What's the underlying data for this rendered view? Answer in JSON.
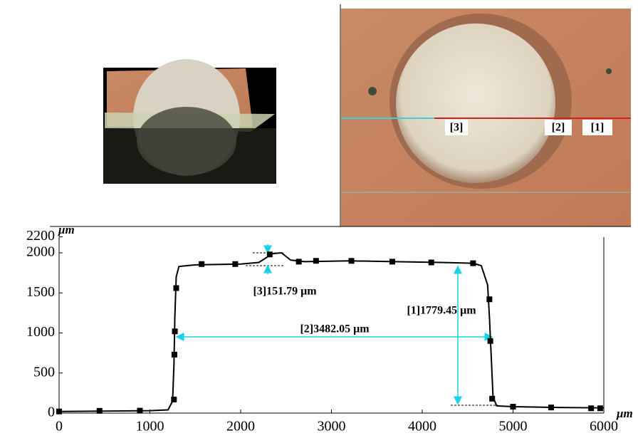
{
  "photos": {
    "labels": [
      "[3]",
      "[2]",
      "[1]"
    ]
  },
  "chart_data": {
    "type": "line",
    "x_unit": "μm",
    "y_unit": "μm",
    "xlim": [
      0,
      6000
    ],
    "xticks": [
      0,
      1000,
      2000,
      3000,
      4000,
      5000,
      6000
    ],
    "ylim": [
      0,
      2200
    ],
    "yticks": [
      0,
      500,
      1000,
      1500,
      2000,
      2200
    ],
    "annotations": [
      "[3]151.79 μm",
      "[2]3482.05 μm",
      "[1]1779.45 μm"
    ],
    "series": [
      {
        "color": "#000000",
        "marker": false,
        "x": [
          0,
          500,
          1000,
          1200,
          1250,
          1265,
          1275,
          1290,
          1320,
          1500,
          2000,
          2200,
          2350,
          2450,
          2550,
          2700,
          3200,
          3700,
          4200,
          4560,
          4650,
          4720,
          4740,
          4760,
          4780,
          4820,
          5000,
          5500,
          6000
        ],
        "values": [
          20,
          25,
          30,
          40,
          150,
          600,
          1200,
          1700,
          1830,
          1850,
          1860,
          1880,
          1990,
          2000,
          1910,
          1890,
          1900,
          1890,
          1880,
          1870,
          1840,
          1600,
          1200,
          700,
          200,
          90,
          80,
          70,
          65
        ]
      },
      {
        "color": "#000000",
        "marker": true,
        "x": [
          0,
          445,
          890,
          1265,
          1270,
          1275,
          1290,
          1570,
          1940,
          2320,
          2640,
          2830,
          3220,
          3670,
          4100,
          4560,
          4740,
          4750,
          4770,
          5000,
          5420,
          5860,
          5960
        ],
        "values": [
          20,
          28,
          30,
          170,
          730,
          1020,
          1560,
          1860,
          1860,
          1980,
          1890,
          1900,
          1900,
          1890,
          1880,
          1870,
          1420,
          900,
          180,
          80,
          70,
          60,
          60
        ]
      }
    ]
  }
}
